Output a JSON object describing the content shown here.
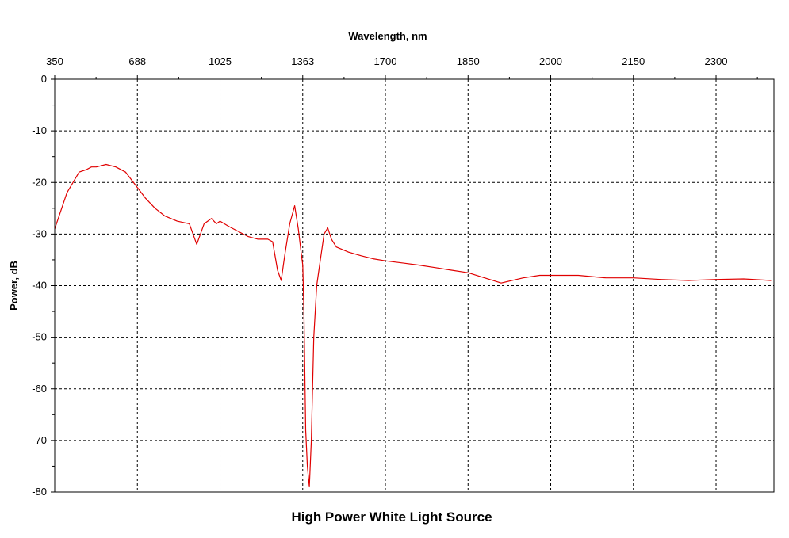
{
  "chart_data": {
    "type": "line",
    "title": "High Power White Light Source",
    "xlabel": "Wavelength, nm",
    "ylabel": "Power, dB",
    "x_tick_labels": [
      "350",
      "688",
      "1025",
      "1363",
      "1700",
      "1850",
      "2000",
      "2150",
      "2300"
    ],
    "y_ticks": [
      0,
      -10,
      -20,
      -30,
      -40,
      -50,
      -60,
      -70,
      -80
    ],
    "ylim": [
      -80,
      0
    ],
    "xlim_label_range": [
      "350",
      "2300"
    ],
    "grid": true,
    "grid_style": "dashed",
    "line_color": "#e00000",
    "series": [
      {
        "x": [
          350,
          400,
          450,
          480,
          500,
          520,
          560,
          600,
          640,
          688,
          720,
          760,
          800,
          850,
          900,
          930,
          960,
          990,
          1010,
          1025,
          1060,
          1100,
          1140,
          1180,
          1220,
          1240,
          1260,
          1275,
          1290,
          1310,
          1330,
          1345,
          1355,
          1363,
          1368,
          1375,
          1382,
          1390,
          1398,
          1408,
          1420,
          1435,
          1450,
          1465,
          1480,
          1500,
          1550,
          1600,
          1650,
          1700,
          1730,
          1760,
          1790,
          1820,
          1850,
          1880,
          1910,
          1950,
          1980,
          2000,
          2050,
          2100,
          2150,
          2200,
          2250,
          2300,
          2350,
          2400
        ],
        "y": [
          -29,
          -22,
          -18,
          -17.5,
          -17,
          -17,
          -16.5,
          -17,
          -18,
          -21,
          -23,
          -25,
          -26.5,
          -27.5,
          -28,
          -32,
          -28,
          -27,
          -28,
          -27.5,
          -28.5,
          -29.5,
          -30.5,
          -31,
          -31,
          -31.5,
          -37,
          -39,
          -34,
          -28,
          -24.5,
          -29,
          -33,
          -36,
          -45,
          -68,
          -75,
          -79,
          -70,
          -50,
          -40,
          -35,
          -30,
          -28.8,
          -31,
          -32.5,
          -33.5,
          -34.2,
          -34.8,
          -35.2,
          -35.6,
          -36,
          -36.5,
          -37,
          -37.5,
          -38.5,
          -39.5,
          -38.5,
          -38,
          -38,
          -38,
          -38.5,
          -38.5,
          -38.8,
          -39,
          -38.8,
          -38.7,
          -39
        ]
      }
    ]
  }
}
